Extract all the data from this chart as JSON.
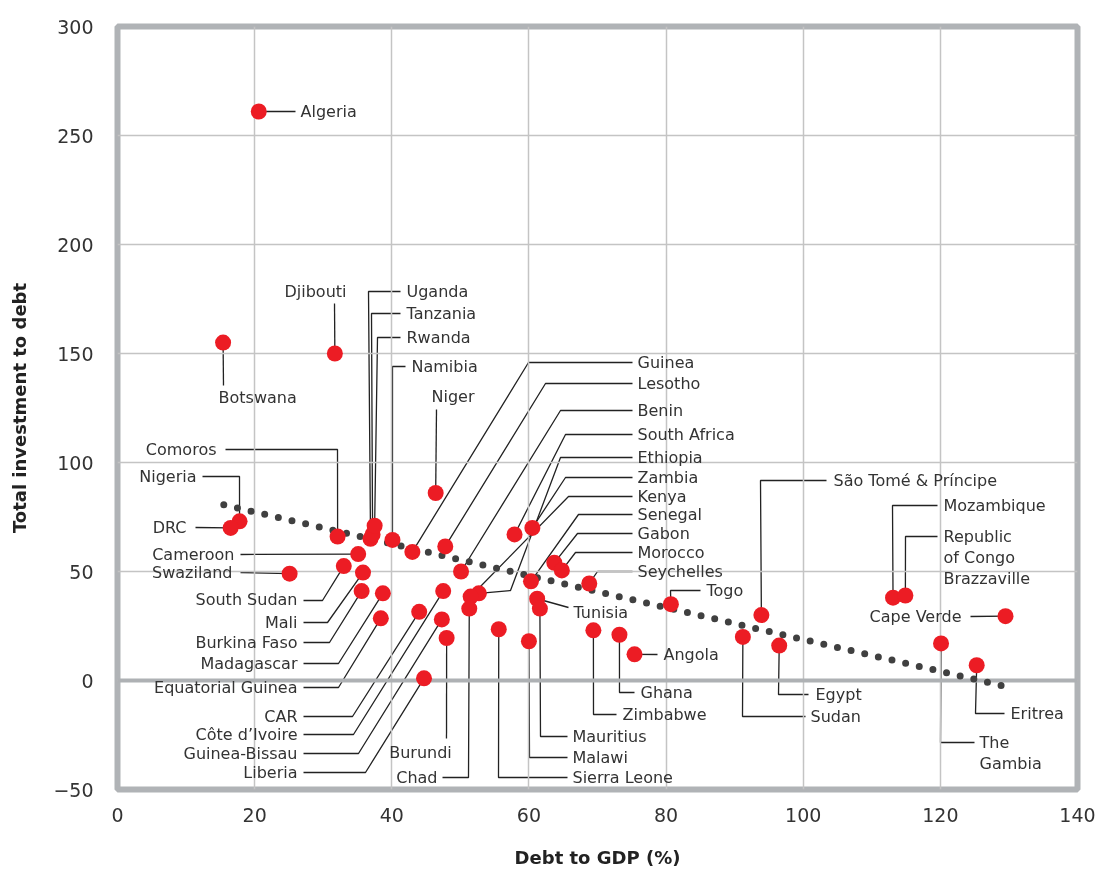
{
  "chart_data": {
    "type": "scatter",
    "xlabel": "Debt to GDP (%)",
    "ylabel": "Total investment to debt",
    "xlim": [
      0,
      140
    ],
    "ylim": [
      -50,
      300
    ],
    "xticks": [
      0,
      20,
      40,
      60,
      80,
      100,
      120,
      140
    ],
    "yticks": [
      -50,
      0,
      50,
      100,
      150,
      200,
      250,
      300
    ],
    "grid": true,
    "ref_lines": [
      {
        "axis": "y",
        "value": 0,
        "color": "#aeb1b4"
      }
    ],
    "series": [
      {
        "marker": "circle",
        "color": "#ec1c24",
        "x": [
          20.6,
          15.4,
          31.7,
          46.4,
          17.8,
          16.5,
          32.1,
          36.9,
          37.2,
          37.5,
          40.1,
          43.0,
          47.8,
          50.1,
          57.9,
          52.7,
          60.5,
          51.5,
          60.3,
          63.7,
          64.8,
          68.8,
          61.2,
          61.6,
          55.6,
          60.0,
          69.4,
          73.2,
          75.4,
          80.7,
          91.2,
          96.5,
          93.9,
          113.1,
          114.9,
          129.5,
          120.1,
          125.3,
          35.1,
          25.1,
          33.0,
          35.8,
          35.6,
          38.7,
          38.4,
          44.0,
          47.5,
          47.3,
          44.7,
          48.0,
          51.3
        ],
        "values": [
          261,
          155,
          150,
          86,
          73,
          70,
          66,
          65,
          67,
          71,
          64.5,
          59,
          61.5,
          50,
          67,
          40,
          70,
          38.5,
          45.5,
          54,
          50.5,
          44.5,
          37.5,
          33,
          23.5,
          18,
          23,
          21,
          12,
          35,
          20,
          16,
          30,
          38,
          39,
          29.5,
          17,
          7,
          58,
          49,
          52.5,
          49.5,
          41,
          40,
          28.5,
          31.5,
          41,
          28,
          1,
          19.5,
          33
        ]
      },
      {
        "type": "line",
        "line_style": "dotted",
        "color": "#404040",
        "x": [
          15.5,
          129.6
        ],
        "values": [
          80.6,
          -2.8
        ]
      }
    ],
    "annotations": [
      {
        "text": "Algeria",
        "x": 20.6,
        "y": 261
      },
      {
        "text": "Botswana",
        "x": 15.4,
        "y": 155
      },
      {
        "text": "Djibouti",
        "x": 31.7,
        "y": 150
      },
      {
        "text": "Niger",
        "x": 46.4,
        "y": 86
      },
      {
        "text": "Nigeria",
        "x": 17.8,
        "y": 73
      },
      {
        "text": "DRC",
        "x": 16.5,
        "y": 70
      },
      {
        "text": "Comoros",
        "x": 32.1,
        "y": 66
      },
      {
        "text": "Uganda",
        "x": 36.9,
        "y": 65
      },
      {
        "text": "Tanzania",
        "x": 37.2,
        "y": 67
      },
      {
        "text": "Rwanda",
        "x": 37.5,
        "y": 71
      },
      {
        "text": "Namibia",
        "x": 40.1,
        "y": 64.5
      },
      {
        "text": "Guinea",
        "x": 43.0,
        "y": 59
      },
      {
        "text": "Lesotho",
        "x": 47.8,
        "y": 61.5
      },
      {
        "text": "Benin",
        "x": 50.1,
        "y": 50
      },
      {
        "text": "South Africa",
        "x": 57.9,
        "y": 67
      },
      {
        "text": "Ethiopia",
        "x": 52.7,
        "y": 40
      },
      {
        "text": "Zambia",
        "x": 60.5,
        "y": 70
      },
      {
        "text": "Kenya",
        "x": 51.5,
        "y": 38.5
      },
      {
        "text": "Senegal",
        "x": 60.3,
        "y": 45.5
      },
      {
        "text": "Gabon",
        "x": 63.7,
        "y": 54
      },
      {
        "text": "Morocco",
        "x": 64.8,
        "y": 50.5
      },
      {
        "text": "Seychelles",
        "x": 68.8,
        "y": 44.5
      },
      {
        "text": "Tunisia",
        "x": 61.2,
        "y": 37.5
      },
      {
        "text": "Mauritius",
        "x": 61.6,
        "y": 33
      },
      {
        "text": "Sierra Leone",
        "x": 55.6,
        "y": 23.5
      },
      {
        "text": "Malawi",
        "x": 60.0,
        "y": 18
      },
      {
        "text": "Zimbabwe",
        "x": 69.4,
        "y": 23
      },
      {
        "text": "Ghana",
        "x": 73.2,
        "y": 21
      },
      {
        "text": "Angola",
        "x": 75.4,
        "y": 12
      },
      {
        "text": "Togo",
        "x": 80.7,
        "y": 35
      },
      {
        "text": "Sudan",
        "x": 91.2,
        "y": 20
      },
      {
        "text": "Egypt",
        "x": 96.5,
        "y": 16
      },
      {
        "text": "São Tomé & Príncipe",
        "x": 93.9,
        "y": 30
      },
      {
        "text": "Mozambique",
        "x": 113.1,
        "y": 38
      },
      {
        "text": "Republic of Congo Brazzaville",
        "x": 114.9,
        "y": 39
      },
      {
        "text": "Cape Verde",
        "x": 129.5,
        "y": 29.5
      },
      {
        "text": "The Gambia",
        "x": 120.1,
        "y": 17
      },
      {
        "text": "Eritrea",
        "x": 125.3,
        "y": 7
      },
      {
        "text": "Cameroon",
        "x": 35.1,
        "y": 58
      },
      {
        "text": "Swaziland",
        "x": 25.1,
        "y": 49
      },
      {
        "text": "South Sudan",
        "x": 33.0,
        "y": 52.5
      },
      {
        "text": "Mali",
        "x": 35.8,
        "y": 49.5
      },
      {
        "text": "Burkina Faso",
        "x": 35.6,
        "y": 41
      },
      {
        "text": "Madagascar",
        "x": 38.7,
        "y": 40
      },
      {
        "text": "Equatorial Guinea",
        "x": 38.4,
        "y": 28.5
      },
      {
        "text": "CAR",
        "x": 44.0,
        "y": 31.5
      },
      {
        "text": "Côte d’Ivoire",
        "x": 47.5,
        "y": 41
      },
      {
        "text": "Guinea-Bissau",
        "x": 47.3,
        "y": 28
      },
      {
        "text": "Liberia",
        "x": 44.7,
        "y": 1
      },
      {
        "text": "Burundi",
        "x": 48.0,
        "y": 19.5
      },
      {
        "text": "Chad",
        "x": 51.3,
        "y": 33
      }
    ]
  }
}
